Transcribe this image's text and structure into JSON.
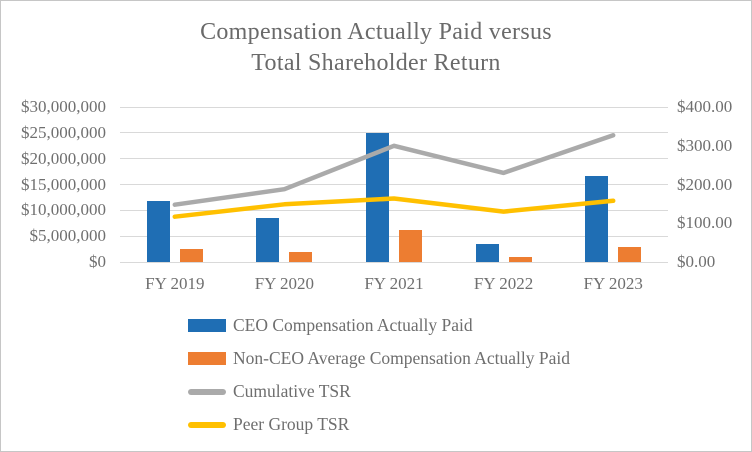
{
  "chart_data": {
    "type": "bar",
    "subtype": "combo-bar-line-dual-axis",
    "title_lines": [
      "Compensation Actually Paid versus",
      "Total Shareholder Return"
    ],
    "categories": [
      "FY 2019",
      "FY 2020",
      "FY 2021",
      "FY 2022",
      "FY 2023"
    ],
    "series": [
      {
        "name": "CEO Compensation Actually Paid",
        "type": "bar",
        "axis": "left",
        "color": "#1f6eb4",
        "values": [
          11800000,
          8500000,
          25000000,
          3400000,
          16600000
        ]
      },
      {
        "name": "Non-CEO Average Compensation Actually Paid",
        "type": "bar",
        "axis": "left",
        "color": "#ed7d31",
        "values": [
          2500000,
          1900000,
          6300000,
          900000,
          2900000
        ]
      },
      {
        "name": "Cumulative TSR",
        "type": "line",
        "axis": "right",
        "color": "#aaaaaa",
        "values": [
          148,
          188,
          300,
          230,
          327
        ]
      },
      {
        "name": "Peer Group TSR",
        "type": "line",
        "axis": "right",
        "color": "#ffc000",
        "values": [
          117,
          149,
          164,
          130,
          158
        ]
      }
    ],
    "left_axis": {
      "min": 0,
      "max": 30000000,
      "ticks": [
        "$30,000,000",
        "$25,000,000",
        "$20,000,000",
        "$15,000,000",
        "$10,000,000",
        "$5,000,000",
        "$0"
      ]
    },
    "right_axis": {
      "min": 0,
      "max": 400,
      "ticks": [
        "$400.00",
        "$300.00",
        "$200.00",
        "$100.00",
        "$0.00"
      ]
    },
    "grid": true,
    "legend_position": "bottom-left",
    "colors": {
      "grid": "#d9d9d9",
      "text": "#6a6a6a"
    }
  }
}
